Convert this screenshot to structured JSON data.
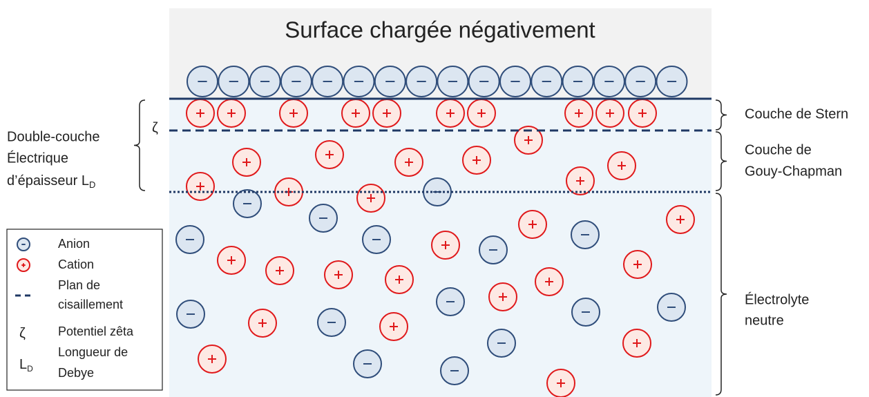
{
  "title": "Surface chargée négativement",
  "labels": {
    "stern": "Couche de Stern",
    "gouy": [
      "Couche de",
      "Gouy-Chapman"
    ],
    "electrolyte": [
      "Électrolyte",
      "neutre"
    ],
    "double_layer": [
      "Double-couche",
      "Électrique",
      "d’épaisseur L"
    ],
    "double_layer_sub": "D",
    "zeta": "ζ"
  },
  "legend": {
    "items": [
      {
        "label": [
          "Anion"
        ]
      },
      {
        "label": [
          "Cation"
        ]
      },
      {
        "label": [
          "Plan de",
          "cisaillement"
        ]
      },
      {
        "symbol": "ζ",
        "label": [
          "Potentiel zêta"
        ]
      },
      {
        "symbol": "L",
        "symbol_sub": "D",
        "label": [
          "Longueur de",
          "Debye"
        ]
      }
    ]
  }
}
